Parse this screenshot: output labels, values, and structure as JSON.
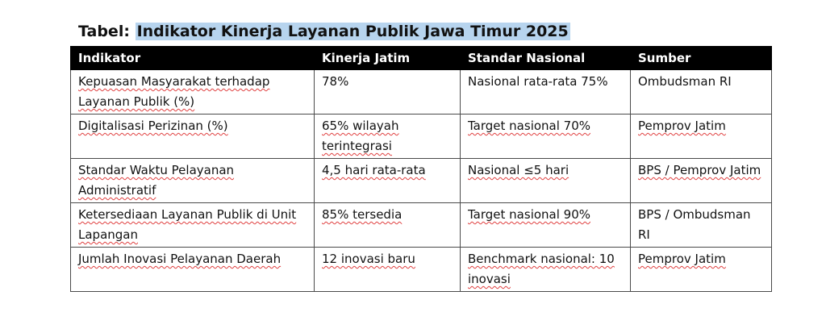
{
  "title": {
    "prefix": "Tabel:",
    "text": "Indikator Kinerja Layanan Publik Jawa Timur 2025"
  },
  "table": {
    "headers": [
      "Indikator",
      "Kinerja Jatim",
      "Standar Nasional",
      "Sumber"
    ],
    "rows": [
      [
        "Kepuasan Masyarakat terhadap Layanan Publik (%)",
        "78%",
        "Nasional rata-rata 75%",
        "Ombudsman RI"
      ],
      [
        "Digitalisasi Perizinan (%)",
        "65% wilayah terintegrasi",
        "Target nasional 70%",
        "Pemprov Jatim"
      ],
      [
        "Standar Waktu Pelayanan Administratif",
        "4,5 hari rata-rata",
        "Nasional ≤5 hari",
        "BPS / Pemprov Jatim"
      ],
      [
        "Ketersediaan Layanan Publik di Unit Lapangan",
        "85% tersedia",
        "Target nasional 90%",
        "BPS / Ombudsman RI"
      ],
      [
        "Jumlah Inovasi Pelayanan Daerah",
        "12 inovasi baru",
        "Benchmark nasional: 10 inovasi",
        "Pemprov Jatim"
      ]
    ]
  },
  "colors": {
    "header_bg": "#000000",
    "header_text": "#ffffff",
    "title_highlight": "#b7d4ee",
    "spellcheck_underline": "#e04040"
  }
}
